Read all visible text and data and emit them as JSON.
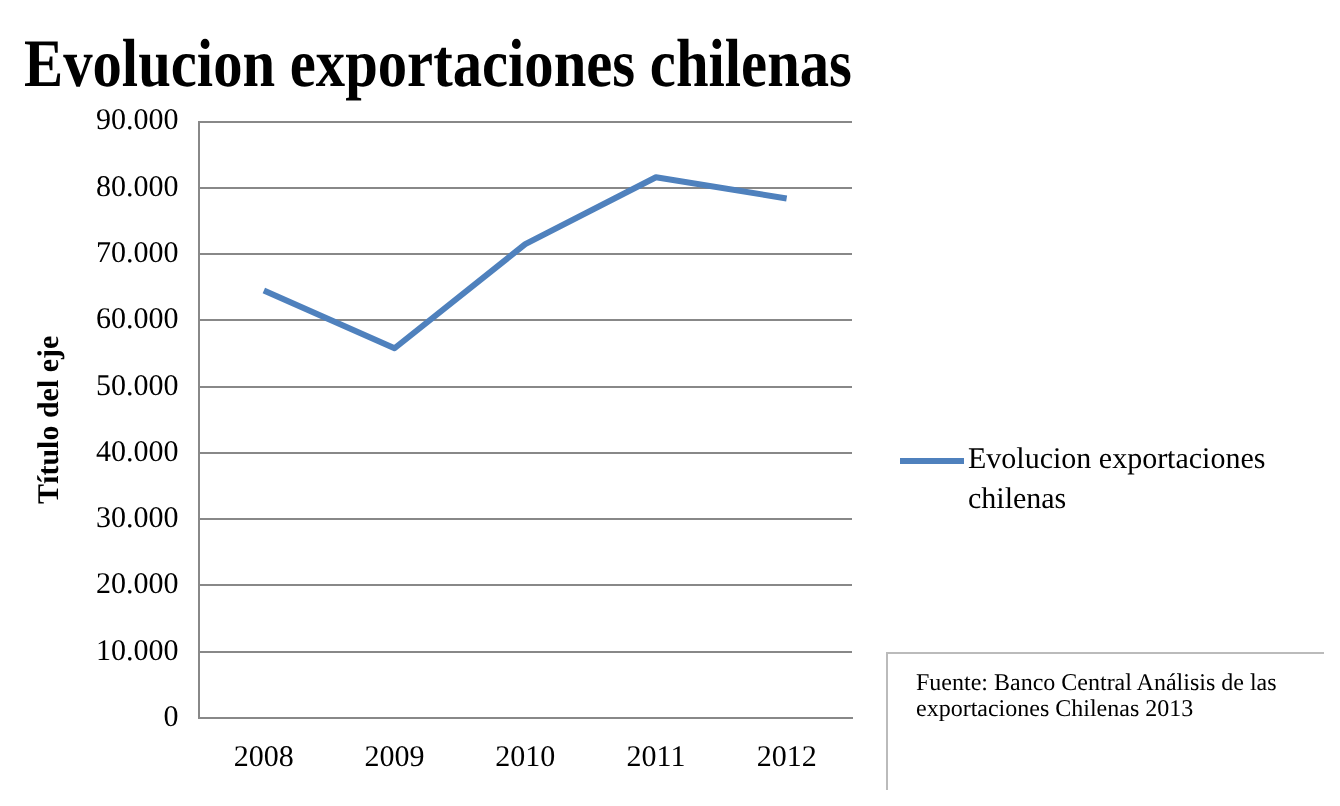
{
  "chart_data": {
    "type": "line",
    "title": "Evolucion exportaciones chilenas",
    "ylabel": "Título del eje",
    "categories": [
      "2008",
      "2009",
      "2010",
      "2011",
      "2012"
    ],
    "series": [
      {
        "name": "Evolucion exportaciones chilenas",
        "color": "#4f81bd",
        "values": [
          64500,
          55800,
          71500,
          81600,
          78400
        ]
      }
    ],
    "ylim": [
      0,
      90000
    ],
    "yticks": [
      0,
      {
        "value": 10000,
        "label": "10.000"
      },
      {
        "value": 20000,
        "label": "20.000"
      },
      {
        "value": 30000,
        "label": "30.000"
      },
      {
        "value": 40000,
        "label": "40.000"
      },
      {
        "value": 50000,
        "label": "50.000"
      },
      {
        "value": 60000,
        "label": "60.000"
      },
      {
        "value": 70000,
        "label": "70.000"
      },
      {
        "value": 80000,
        "label": "80.000"
      },
      {
        "value": 90000,
        "label": "90.000"
      }
    ],
    "grid": "y",
    "legend": "right",
    "marker": "none",
    "line_style": "solid",
    "annotations": [
      "Fuente: Banco Central Análisis de las exportaciones Chilenas 2013"
    ]
  }
}
